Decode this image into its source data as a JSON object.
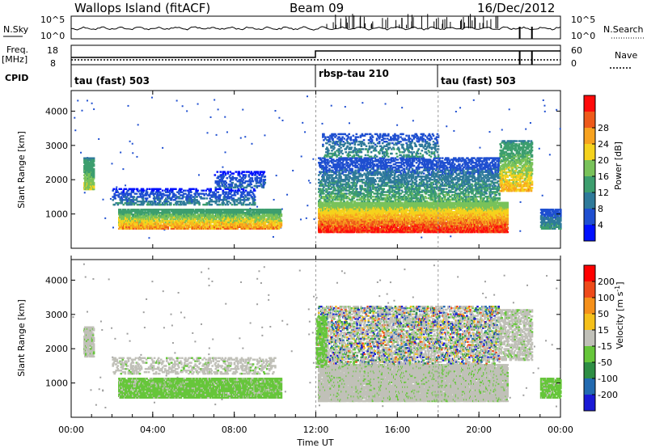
{
  "header": {
    "station": "Wallops Island (fitACF)",
    "beam": "Beam 09",
    "date": "16/Dec/2012"
  },
  "status_panels": {
    "nsky_label": "N.Sky",
    "nsearch_label": "N.Search",
    "nsky_ticks": [
      "10^5",
      "10^0"
    ],
    "nsearch_ticks": [
      "10^5",
      "10^0"
    ],
    "freq_label": "Freq.",
    "freq_unit": "[MHz]",
    "freq_ticks": [
      "18",
      "8"
    ],
    "nave_label": "Nave",
    "nave_ticks": [
      "60",
      "0"
    ],
    "cpid_label": "CPID",
    "cpid_segments": [
      {
        "start_hr": 0,
        "label": "tau (fast) 503"
      },
      {
        "start_hr": 12,
        "label": "rbsp-tau 210"
      },
      {
        "start_hr": 18,
        "label": "tau (fast) 503"
      }
    ]
  },
  "chart_data": [
    {
      "type": "heatmap",
      "quantity": "power",
      "ylabel": "Slant Range [km]",
      "xlabel": "Time UT",
      "xlim": [
        0,
        24
      ],
      "ylim": [
        0,
        4600
      ],
      "yticks": [
        1000,
        2000,
        3000,
        4000
      ],
      "colorbar": {
        "label": "Power [dB]",
        "ticks": [
          4,
          8,
          12,
          16,
          20,
          24,
          28
        ],
        "range": [
          0,
          32
        ],
        "colors": [
          "#0010ff",
          "#1f4fd0",
          "#2f7a9a",
          "#3d9e6e",
          "#79c25a",
          "#f5d21d",
          "#f7a21f",
          "#ee5a1a",
          "#ff0a0a"
        ]
      },
      "regions": [
        {
          "t0": 0.6,
          "t1": 1.1,
          "r0": 1750,
          "r1": 2700,
          "density": 0.8,
          "level": [
            10,
            18
          ]
        },
        {
          "t0": 2.3,
          "t1": 10.3,
          "r0": 600,
          "r1": 1200,
          "density": 0.75,
          "level": [
            10,
            24
          ]
        },
        {
          "t0": 2.0,
          "t1": 9.0,
          "r0": 1300,
          "r1": 1800,
          "density": 0.35,
          "level": [
            2,
            10
          ]
        },
        {
          "t0": 7.0,
          "t1": 9.5,
          "r0": 1800,
          "r1": 2300,
          "density": 0.3,
          "level": [
            2,
            8
          ]
        },
        {
          "t0": 12.1,
          "t1": 21.4,
          "r0": 500,
          "r1": 1400,
          "density": 0.85,
          "level": [
            14,
            30
          ]
        },
        {
          "t0": 12.1,
          "t1": 21.0,
          "r0": 1400,
          "r1": 2700,
          "density": 0.45,
          "level": [
            4,
            14
          ]
        },
        {
          "t0": 12.3,
          "t1": 18.0,
          "r0": 2700,
          "r1": 3400,
          "density": 0.25,
          "level": [
            4,
            12
          ]
        },
        {
          "t0": 21.0,
          "t1": 22.6,
          "r0": 1700,
          "r1": 3200,
          "density": 0.55,
          "level": [
            10,
            22
          ]
        },
        {
          "t0": 23.0,
          "t1": 24.0,
          "r0": 600,
          "r1": 1200,
          "density": 0.7,
          "level": [
            4,
            12
          ]
        }
      ]
    },
    {
      "type": "heatmap",
      "quantity": "velocity",
      "ylabel": "Slant Range [km]",
      "xlabel": "Time UT",
      "xlim": [
        0,
        24
      ],
      "ylim": [
        0,
        4600
      ],
      "yticks": [
        1000,
        2000,
        3000,
        4000
      ],
      "xticks": [
        "00:00",
        "04:00",
        "08:00",
        "12:00",
        "16:00",
        "20:00",
        "00:00"
      ],
      "colorbar": {
        "label": "Velocity [m s",
        "label_sup": "-1",
        "label_end": "]",
        "ticks": [
          200,
          100,
          50,
          15,
          -15,
          -50,
          -100,
          -200
        ],
        "colors": [
          "#1a1ad6",
          "#226ab0",
          "#2e8e44",
          "#66c63a",
          "#c0c0b8",
          "#f5c01a",
          "#f5901a",
          "#ee4a1a",
          "#ff0000"
        ]
      },
      "regions": [
        {
          "t0": 0.6,
          "t1": 1.1,
          "r0": 1800,
          "r1": 2700,
          "density": 0.8,
          "cls": "ground"
        },
        {
          "t0": 2.3,
          "t1": 10.3,
          "r0": 600,
          "r1": 1200,
          "density": 0.8,
          "cls": "green"
        },
        {
          "t0": 2.0,
          "t1": 10.0,
          "r0": 1300,
          "r1": 1800,
          "density": 0.3,
          "cls": "ground"
        },
        {
          "t0": 12.1,
          "t1": 21.4,
          "r0": 500,
          "r1": 1600,
          "density": 0.85,
          "cls": "ground"
        },
        {
          "t0": 12.1,
          "t1": 21.0,
          "r0": 1600,
          "r1": 3300,
          "density": 0.45,
          "cls": "mixed"
        },
        {
          "t0": 12.0,
          "t1": 12.5,
          "r0": 1500,
          "r1": 3000,
          "density": 0.6,
          "cls": "green"
        },
        {
          "t0": 21.0,
          "t1": 22.6,
          "r0": 1700,
          "r1": 3200,
          "density": 0.5,
          "cls": "ground"
        },
        {
          "t0": 23.0,
          "t1": 24.0,
          "r0": 600,
          "r1": 1200,
          "density": 0.7,
          "cls": "green"
        }
      ]
    }
  ]
}
